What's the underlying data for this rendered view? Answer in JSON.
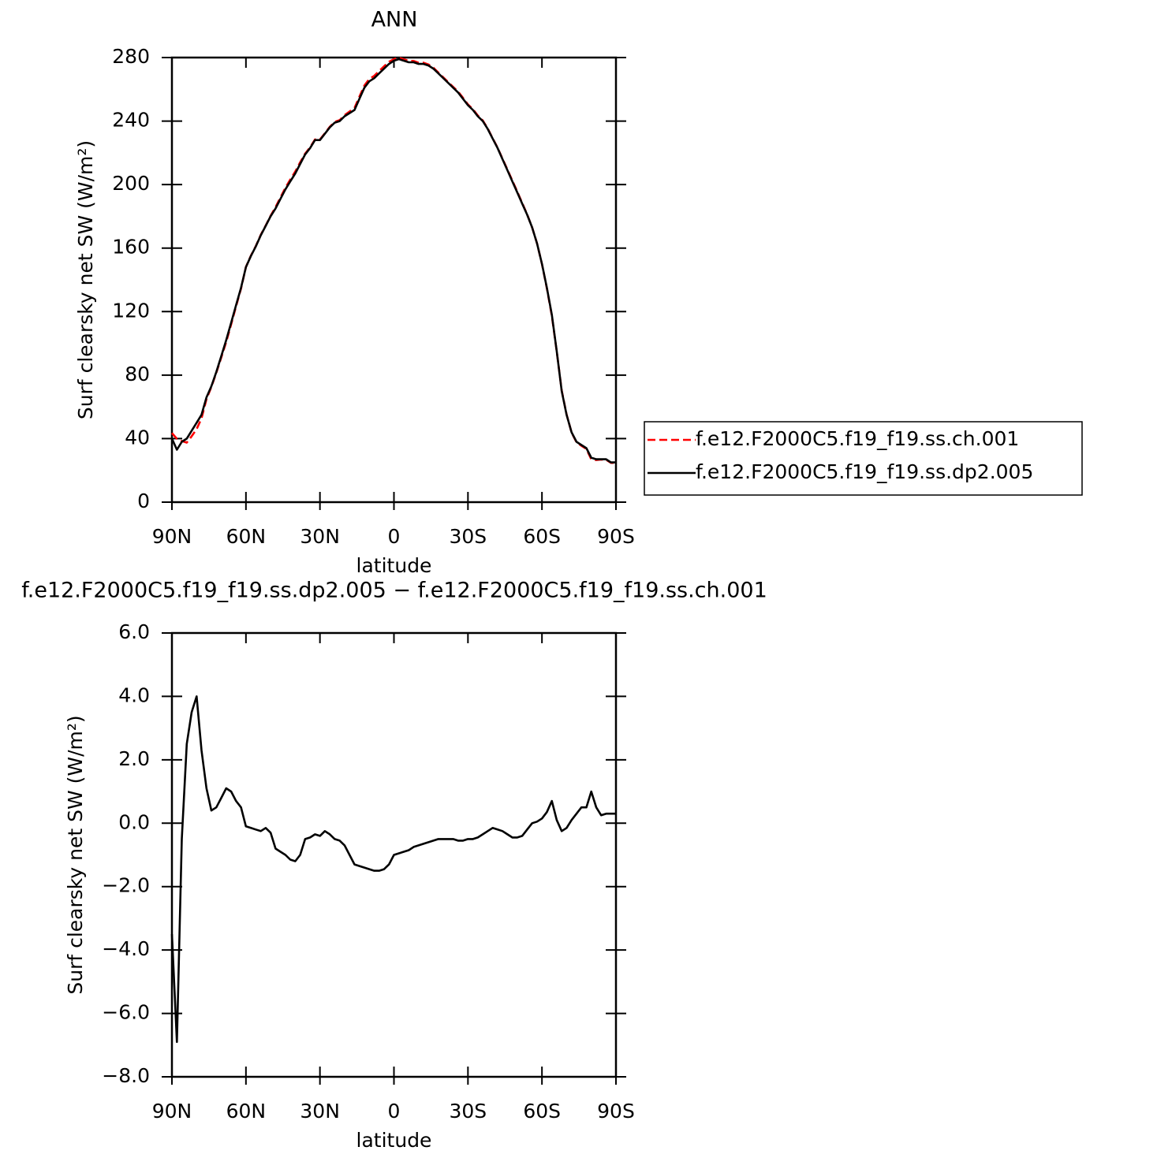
{
  "chart_data": [
    {
      "type": "line",
      "title": "ANN",
      "xlabel": "latitude",
      "ylabel": "Surf clearsky net SW (W/m²)",
      "x": [
        90,
        88,
        86,
        84,
        82,
        80,
        78,
        76,
        74,
        72,
        70,
        68,
        66,
        64,
        62,
        60,
        58,
        56,
        54,
        52,
        50,
        48,
        46,
        44,
        42,
        40,
        38,
        36,
        34,
        32,
        30,
        28,
        26,
        24,
        22,
        20,
        18,
        16,
        14,
        12,
        10,
        8,
        6,
        4,
        2,
        0,
        -2,
        -4,
        -6,
        -8,
        -10,
        -12,
        -14,
        -16,
        -18,
        -20,
        -22,
        -24,
        -26,
        -28,
        -30,
        -32,
        -34,
        -36,
        -38,
        -40,
        -42,
        -44,
        -46,
        -48,
        -50,
        -52,
        -54,
        -56,
        -58,
        -60,
        -62,
        -64,
        -66,
        -68,
        -70,
        -72,
        -74,
        -76,
        -78,
        -80,
        -82,
        -84,
        -86,
        -88,
        -90
      ],
      "series": [
        {
          "name": "f.e12.F2000C5.f19_f19.ss.ch.001",
          "color": "#ff0000",
          "linestyle": "dashed",
          "values": [
            43.5,
            39.9,
            38.5,
            37.5,
            41.5,
            46,
            52.7,
            64.9,
            72.6,
            81.5,
            91.2,
            100.9,
            112,
            123.3,
            134.5,
            148.1,
            155.2,
            161.2,
            168.3,
            174.2,
            180.3,
            185.8,
            191.9,
            198,
            203.2,
            208.2,
            214,
            219.5,
            223.5,
            228.4,
            228.4,
            232.3,
            236.4,
            239.5,
            240.6,
            243.7,
            246,
            248.3,
            255.4,
            262.4,
            266.5,
            268.5,
            271.5,
            274.5,
            277.3,
            279,
            279.9,
            278.9,
            277.9,
            277.8,
            276.7,
            276.7,
            275.6,
            273.6,
            270.5,
            267.5,
            264.5,
            261.5,
            258.6,
            254.6,
            250.5,
            247.5,
            243.5,
            240.4,
            235.3,
            229.2,
            223.2,
            216.3,
            209.4,
            202.5,
            195.5,
            188.4,
            181.2,
            173,
            163,
            149.9,
            134.7,
            117.3,
            94.9,
            70.3,
            55.2,
            43.9,
            37.7,
            35.5,
            33.5,
            27,
            26.5,
            26.8,
            26.7,
            24.7,
            24.7
          ]
        },
        {
          "name": "f.e12.F2000C5.f19_f19.ss.dp2.005",
          "color": "#000000",
          "linestyle": "solid",
          "values": [
            40,
            33,
            38,
            40,
            45,
            50,
            55,
            66,
            73,
            82,
            92,
            102,
            113,
            124,
            135,
            148,
            155,
            161,
            168,
            174,
            180,
            185,
            191,
            197,
            202,
            207,
            213,
            219,
            223,
            228,
            228,
            232,
            236,
            239,
            240,
            243,
            245,
            247,
            254,
            261,
            265,
            267,
            270,
            273,
            276,
            278,
            279,
            278,
            277,
            277,
            276,
            276,
            275,
            273,
            270,
            267,
            264,
            261,
            258,
            254,
            250,
            247,
            243,
            240,
            235,
            229,
            223,
            216,
            209,
            202,
            195,
            188,
            181,
            173,
            163,
            150,
            135,
            118,
            95,
            70,
            55,
            44,
            38,
            36,
            34,
            28,
            27,
            27,
            27,
            25,
            25
          ]
        }
      ],
      "xlim": [
        90,
        -90
      ],
      "xticks": [
        {
          "value": 90,
          "label": "90N"
        },
        {
          "value": 60,
          "label": "60N"
        },
        {
          "value": 30,
          "label": "30N"
        },
        0,
        {
          "value": -30,
          "label": "30S"
        },
        {
          "value": -60,
          "label": "60S"
        },
        {
          "value": -90,
          "label": "90S"
        }
      ],
      "ylim": [
        0,
        280
      ],
      "yticks": [
        0,
        40,
        80,
        120,
        160,
        200,
        240,
        280
      ],
      "legend": "right"
    },
    {
      "type": "line",
      "title": "f.e12.F2000C5.f19_f19.ss.dp2.005 − f.e12.F2000C5.f19_f19.ss.ch.001",
      "xlabel": "latitude",
      "ylabel": "Surf clearsky net SW (W/m²)",
      "x": [
        90,
        88,
        86,
        84,
        82,
        80,
        78,
        76,
        74,
        72,
        70,
        68,
        66,
        64,
        62,
        60,
        58,
        56,
        54,
        52,
        50,
        48,
        46,
        44,
        42,
        40,
        38,
        36,
        34,
        32,
        30,
        28,
        26,
        24,
        22,
        20,
        18,
        16,
        14,
        12,
        10,
        8,
        6,
        4,
        2,
        0,
        -2,
        -4,
        -6,
        -8,
        -10,
        -12,
        -14,
        -16,
        -18,
        -20,
        -22,
        -24,
        -26,
        -28,
        -30,
        -32,
        -34,
        -36,
        -38,
        -40,
        -42,
        -44,
        -46,
        -48,
        -50,
        -52,
        -54,
        -56,
        -58,
        -60,
        -62,
        -64,
        -66,
        -68,
        -70,
        -72,
        -74,
        -76,
        -78,
        -80,
        -82,
        -84,
        -86,
        -88,
        -90
      ],
      "values": [
        -3.5,
        -6.9,
        -0.5,
        2.5,
        3.5,
        4.0,
        2.3,
        1.1,
        0.4,
        0.5,
        0.8,
        1.1,
        1.0,
        0.7,
        0.5,
        -0.1,
        -0.15,
        -0.2,
        -0.25,
        -0.15,
        -0.3,
        -0.8,
        -0.9,
        -1.0,
        -1.15,
        -1.2,
        -1.0,
        -0.5,
        -0.45,
        -0.35,
        -0.4,
        -0.25,
        -0.35,
        -0.5,
        -0.55,
        -0.7,
        -1.0,
        -1.3,
        -1.35,
        -1.4,
        -1.45,
        -1.5,
        -1.5,
        -1.45,
        -1.3,
        -1.0,
        -0.95,
        -0.9,
        -0.85,
        -0.75,
        -0.7,
        -0.65,
        -0.6,
        -0.55,
        -0.5,
        -0.5,
        -0.5,
        -0.5,
        -0.55,
        -0.55,
        -0.5,
        -0.5,
        -0.45,
        -0.35,
        -0.25,
        -0.15,
        -0.2,
        -0.25,
        -0.35,
        -0.45,
        -0.45,
        -0.4,
        -0.2,
        0.0,
        0.05,
        0.15,
        0.35,
        0.7,
        0.1,
        -0.25,
        -0.15,
        0.1,
        0.3,
        0.5,
        0.5,
        1.0,
        0.5,
        0.25,
        0.3,
        0.3,
        0.3
      ],
      "color": "#000000",
      "xlim": [
        90,
        -90
      ],
      "xticks": [
        {
          "value": 90,
          "label": "90N"
        },
        {
          "value": 60,
          "label": "60N"
        },
        {
          "value": 30,
          "label": "30N"
        },
        0,
        {
          "value": -30,
          "label": "30S"
        },
        {
          "value": -60,
          "label": "60S"
        },
        {
          "value": -90,
          "label": "90S"
        }
      ],
      "ylim": [
        -8,
        6
      ],
      "yticks": [
        {
          "value": -8,
          "label": "−8.0"
        },
        {
          "value": -6,
          "label": "−6.0"
        },
        {
          "value": -4,
          "label": "−4.0"
        },
        {
          "value": -2,
          "label": "−2.0"
        },
        {
          "value": 0,
          "label": "0.0"
        },
        {
          "value": 2,
          "label": "2.0"
        },
        {
          "value": 4,
          "label": "4.0"
        },
        {
          "value": 6,
          "label": "6.0"
        }
      ]
    }
  ]
}
